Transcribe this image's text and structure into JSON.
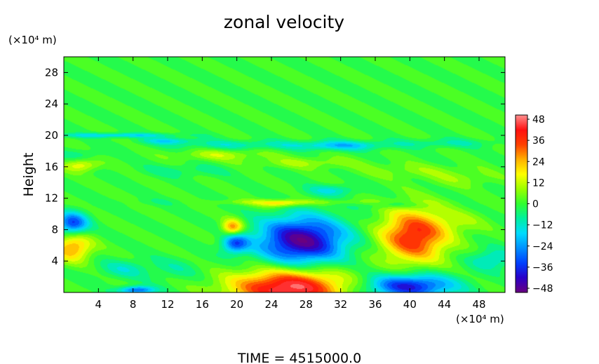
{
  "chart_data": {
    "type": "heatmap",
    "title": "zonal velocity",
    "ylabel": "Height",
    "y_unit_label": "(×10⁴ m)",
    "x_unit_label": "(×10⁴ m)",
    "xlim": [
      0,
      51
    ],
    "ylim": [
      0,
      30
    ],
    "x_ticks": [
      "4",
      "8",
      "12",
      "16",
      "20",
      "24",
      "28",
      "32",
      "36",
      "40",
      "44",
      "48"
    ],
    "y_ticks": [
      "4",
      "8",
      "12",
      "16",
      "20",
      "24",
      "28"
    ],
    "colorbar": {
      "range": [
        -48,
        48
      ],
      "ticks": [
        "48",
        "36",
        "24",
        "12",
        "0",
        "−12",
        "−24",
        "−36",
        "−48"
      ],
      "colors": [
        "#6a0080",
        "#2a00c8",
        "#0040ff",
        "#0090ff",
        "#00dcff",
        "#00f0a0",
        "#30ff30",
        "#9bff00",
        "#ffff00",
        "#ffb000",
        "#ff4000",
        "#ff1010",
        "#ff9090"
      ]
    },
    "features": [
      {
        "x": 6,
        "y": 20,
        "w": 7.0,
        "h": 0.3,
        "v": -16
      },
      {
        "x": 12,
        "y": 19.3,
        "w": 3.0,
        "h": 0.4,
        "v": -14
      },
      {
        "x": 20,
        "y": 18.8,
        "w": 8.0,
        "h": 0.6,
        "v": -10
      },
      {
        "x": 32,
        "y": 18.7,
        "w": 5.0,
        "h": 0.6,
        "v": -18
      },
      {
        "x": 44,
        "y": 19.0,
        "w": 6.0,
        "h": 0.6,
        "v": -8
      },
      {
        "x": 2,
        "y": 17.5,
        "w": 2.5,
        "h": 0.8,
        "v": -6
      },
      {
        "x": 18,
        "y": 17.5,
        "w": 5.0,
        "h": 0.7,
        "v": 10
      },
      {
        "x": 28,
        "y": 16.5,
        "w": 6.0,
        "h": 0.7,
        "v": 8
      },
      {
        "x": 2,
        "y": 16.2,
        "w": 2.0,
        "h": 0.8,
        "v": 16
      },
      {
        "x": 14,
        "y": 15.5,
        "w": 5.0,
        "h": 0.8,
        "v": -6
      },
      {
        "x": 40,
        "y": 15.5,
        "w": 6.0,
        "h": 0.9,
        "v": 6
      },
      {
        "x": 31,
        "y": 13,
        "w": 3.0,
        "h": 0.7,
        "v": -12
      },
      {
        "x": 46,
        "y": 14.5,
        "w": 4.0,
        "h": 1.0,
        "v": 6
      },
      {
        "x": 24,
        "y": 11.5,
        "w": 14.0,
        "h": 0.35,
        "v": 8
      },
      {
        "x": 12,
        "y": 11.5,
        "w": 6.0,
        "h": 0.4,
        "v": -6
      },
      {
        "x": 25,
        "y": 11.3,
        "w": 2.5,
        "h": 0.5,
        "v": 16
      },
      {
        "x": 38,
        "y": 11.2,
        "w": 3.0,
        "h": 0.5,
        "v": -8
      },
      {
        "x": 1,
        "y": 8.8,
        "w": 1.8,
        "h": 1.4,
        "v": -32
      },
      {
        "x": 1,
        "y": 5.7,
        "w": 2.2,
        "h": 1.7,
        "v": 26
      },
      {
        "x": 7,
        "y": 3,
        "w": 3.0,
        "h": 1.2,
        "v": -10
      },
      {
        "x": 13,
        "y": 3,
        "w": 3.0,
        "h": 1.5,
        "v": -6
      },
      {
        "x": 19.5,
        "y": 8.3,
        "w": 1.2,
        "h": 1.0,
        "v": 28
      },
      {
        "x": 19.8,
        "y": 6.2,
        "w": 1.5,
        "h": 1.2,
        "v": -28
      },
      {
        "x": 27.5,
        "y": 6.6,
        "w": 5.0,
        "h": 3.0,
        "v": -46
      },
      {
        "x": 26,
        "y": 0.6,
        "w": 6.5,
        "h": 2.3,
        "v": 46
      },
      {
        "x": 40.5,
        "y": 7.2,
        "w": 3.8,
        "h": 3.3,
        "v": 38
      },
      {
        "x": 40,
        "y": 0.8,
        "w": 5.0,
        "h": 1.5,
        "v": -38
      },
      {
        "x": 49.5,
        "y": 4.2,
        "w": 2.5,
        "h": 1.3,
        "v": -14
      },
      {
        "x": 8.5,
        "y": 0.3,
        "w": 2.0,
        "h": 0.5,
        "v": -30
      },
      {
        "x": 46,
        "y": 9,
        "w": 3.0,
        "h": 1.5,
        "v": 6
      }
    ]
  },
  "footer": {
    "label": "TIME  =  4515000.0"
  }
}
